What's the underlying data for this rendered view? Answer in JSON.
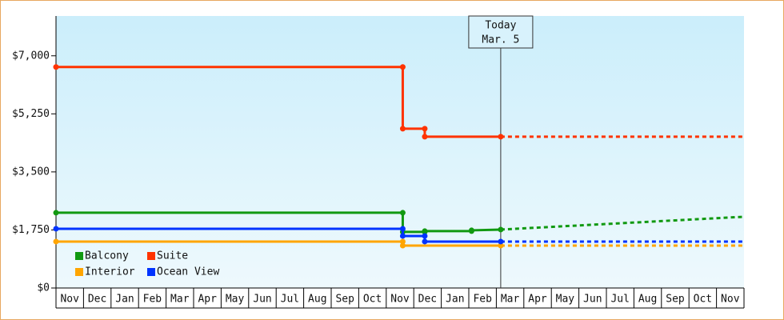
{
  "chart_data": {
    "type": "line",
    "ylim": [
      0,
      8200
    ],
    "yticks": [
      {
        "value": 0,
        "label": "$0"
      },
      {
        "value": 1750,
        "label": "$1,750"
      },
      {
        "value": 3500,
        "label": "$3,500"
      },
      {
        "value": 5250,
        "label": "$5,250"
      },
      {
        "value": 7000,
        "label": "$7,000"
      }
    ],
    "xlim": [
      0,
      25
    ],
    "xticks": [
      {
        "value": 0,
        "label": "Nov"
      },
      {
        "value": 1,
        "label": "Dec"
      },
      {
        "value": 2,
        "label": "Jan"
      },
      {
        "value": 3,
        "label": "Feb"
      },
      {
        "value": 4,
        "label": "Mar"
      },
      {
        "value": 5,
        "label": "Apr"
      },
      {
        "value": 6,
        "label": "May"
      },
      {
        "value": 7,
        "label": "Jun"
      },
      {
        "value": 8,
        "label": "Jul"
      },
      {
        "value": 9,
        "label": "Aug"
      },
      {
        "value": 10,
        "label": "Sep"
      },
      {
        "value": 11,
        "label": "Oct"
      },
      {
        "value": 12,
        "label": "Nov"
      },
      {
        "value": 13,
        "label": "Dec"
      },
      {
        "value": 14,
        "label": "Jan"
      },
      {
        "value": 15,
        "label": "Feb"
      },
      {
        "value": 16,
        "label": "Mar"
      },
      {
        "value": 17,
        "label": "Apr"
      },
      {
        "value": 18,
        "label": "May"
      },
      {
        "value": 19,
        "label": "Jun"
      },
      {
        "value": 20,
        "label": "Jul"
      },
      {
        "value": 21,
        "label": "Aug"
      },
      {
        "value": 22,
        "label": "Sep"
      },
      {
        "value": 23,
        "label": "Oct"
      },
      {
        "value": 24,
        "label": "Nov"
      }
    ],
    "today": {
      "x": 16.16,
      "label": [
        "Today",
        "Mar. 5"
      ]
    },
    "series": [
      {
        "name": "Balcony",
        "color": "#119911",
        "x": [
          0,
          12.6,
          12.6,
          13.4,
          13.4,
          15.1,
          15.1,
          16.16
        ],
        "values": [
          2269,
          2269,
          1690,
          1690,
          1714,
          1714,
          1738,
          1762
        ],
        "forecast_x": [
          16.16,
          25
        ],
        "forecast_values": [
          1762,
          2148
        ]
      },
      {
        "name": "Suite",
        "color": "#ff3300",
        "x": [
          0,
          12.6,
          12.6,
          13.4,
          13.4,
          16.16
        ],
        "values": [
          6662,
          6662,
          4803,
          4803,
          4562,
          4562
        ],
        "forecast_x": [
          16.16,
          25
        ],
        "forecast_values": [
          4562,
          4562
        ]
      },
      {
        "name": "Interior",
        "color": "#ffa500",
        "x": [
          0,
          12.6,
          12.6,
          16.16
        ],
        "values": [
          1400,
          1400,
          1279,
          1279
        ],
        "forecast_x": [
          16.16,
          25
        ],
        "forecast_values": [
          1279,
          1279
        ]
      },
      {
        "name": "Ocean View",
        "color": "#0033ff",
        "x": [
          0,
          12.6,
          12.6,
          13.4,
          13.4,
          16.16
        ],
        "values": [
          1786,
          1786,
          1569,
          1569,
          1400,
          1400
        ],
        "forecast_x": [
          16.16,
          25
        ],
        "forecast_values": [
          1400,
          1400
        ]
      }
    ]
  }
}
